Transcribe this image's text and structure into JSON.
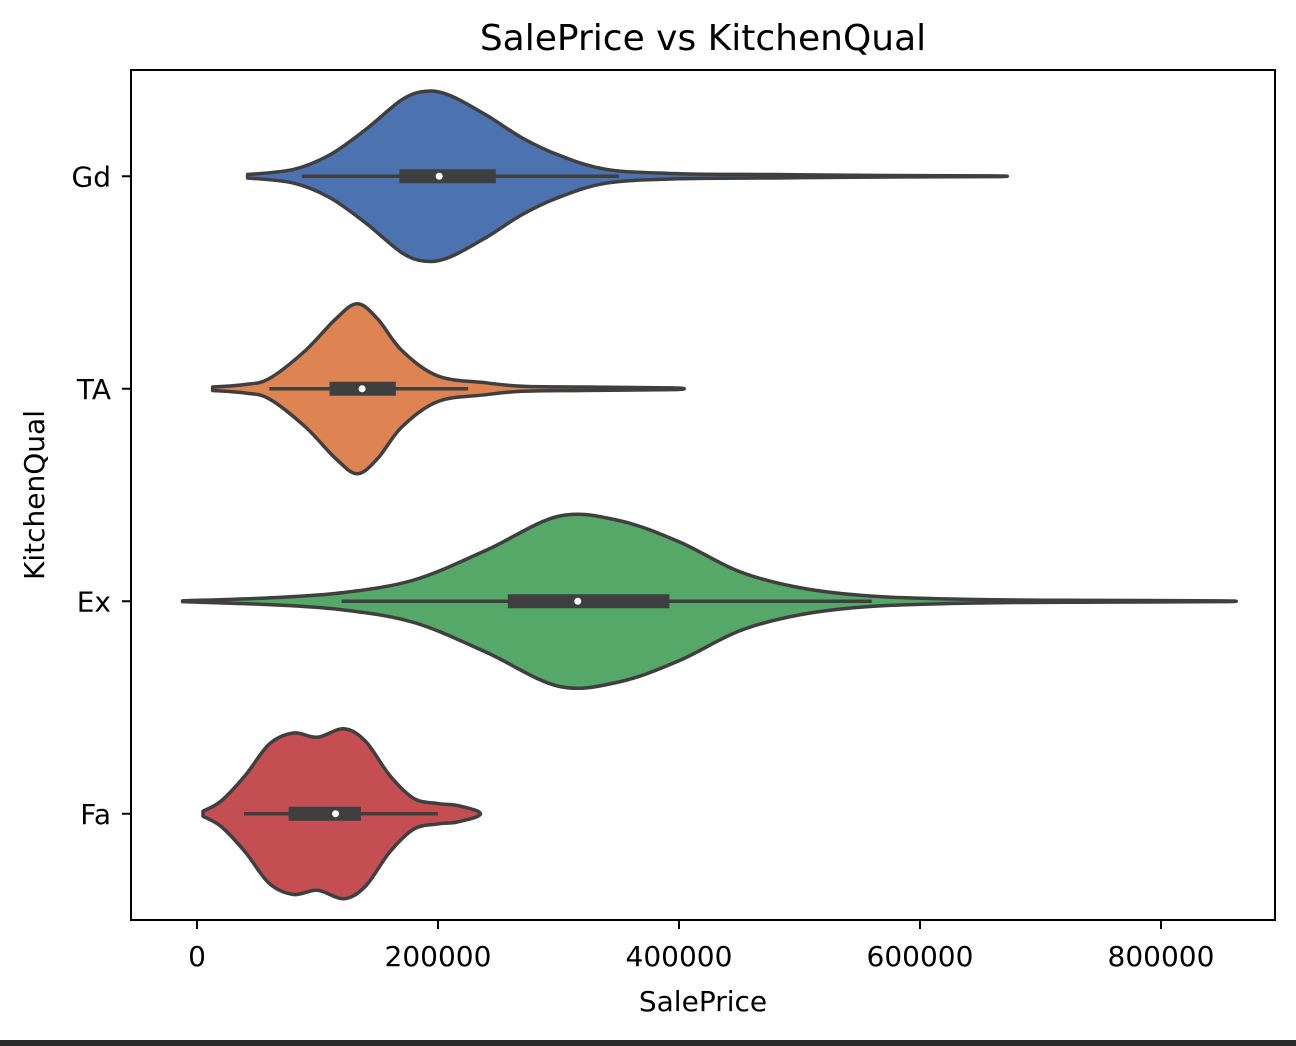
{
  "chart_data": {
    "type": "violin",
    "orientation": "horizontal",
    "title": "SalePrice vs KitchenQual",
    "xlabel": "SalePrice",
    "ylabel": "KitchenQual",
    "xlim": [
      -50000,
      900000
    ],
    "x_ticks": [
      0,
      200000,
      400000,
      600000,
      800000
    ],
    "x_tick_labels": [
      "0",
      "200000",
      "400000",
      "600000",
      "800000"
    ],
    "categories": [
      "Gd",
      "TA",
      "Ex",
      "Fa"
    ],
    "grid": false,
    "series": [
      {
        "category": "Gd",
        "color": "#4c72b0",
        "min": 42000,
        "q1": 168000,
        "median": 201000,
        "q3": 248000,
        "max": 660000,
        "whisker_low": 87000,
        "whisker_high": 350000,
        "density_profile": [
          [
            42000,
            0.02
          ],
          [
            80000,
            0.08
          ],
          [
            110000,
            0.25
          ],
          [
            140000,
            0.55
          ],
          [
            170000,
            0.9
          ],
          [
            190000,
            1.0
          ],
          [
            210000,
            0.95
          ],
          [
            240000,
            0.72
          ],
          [
            270000,
            0.45
          ],
          [
            300000,
            0.25
          ],
          [
            340000,
            0.08
          ],
          [
            400000,
            0.03
          ],
          [
            480000,
            0.02
          ],
          [
            560000,
            0.01
          ],
          [
            660000,
            0.005
          ]
        ]
      },
      {
        "category": "TA",
        "color": "#dd8452",
        "min": 13000,
        "q1": 110000,
        "median": 137000,
        "q3": 165000,
        "max": 395000,
        "whisker_low": 60000,
        "whisker_high": 225000,
        "density_profile": [
          [
            13000,
            0.02
          ],
          [
            40000,
            0.05
          ],
          [
            60000,
            0.12
          ],
          [
            90000,
            0.45
          ],
          [
            115000,
            0.82
          ],
          [
            133000,
            1.0
          ],
          [
            150000,
            0.82
          ],
          [
            170000,
            0.45
          ],
          [
            200000,
            0.15
          ],
          [
            240000,
            0.07
          ],
          [
            270000,
            0.03
          ],
          [
            320000,
            0.02
          ],
          [
            395000,
            0.01
          ]
        ]
      },
      {
        "category": "Ex",
        "color": "#55a868",
        "min": -12000,
        "q1": 258000,
        "median": 316000,
        "q3": 392000,
        "max": 850000,
        "whisker_low": 120000,
        "whisker_high": 560000,
        "density_profile": [
          [
            -12000,
            0.005
          ],
          [
            60000,
            0.04
          ],
          [
            120000,
            0.1
          ],
          [
            180000,
            0.25
          ],
          [
            240000,
            0.6
          ],
          [
            300000,
            1.0
          ],
          [
            350000,
            0.95
          ],
          [
            400000,
            0.7
          ],
          [
            450000,
            0.35
          ],
          [
            500000,
            0.16
          ],
          [
            560000,
            0.06
          ],
          [
            650000,
            0.02
          ],
          [
            750000,
            0.01
          ],
          [
            850000,
            0.005
          ]
        ]
      },
      {
        "category": "Fa",
        "color": "#c44e52",
        "min": 5000,
        "q1": 76000,
        "median": 115000,
        "q3": 136000,
        "max": 233000,
        "whisker_low": 39000,
        "whisker_high": 200000,
        "density_profile": [
          [
            5000,
            0.03
          ],
          [
            20000,
            0.15
          ],
          [
            40000,
            0.45
          ],
          [
            60000,
            0.82
          ],
          [
            80000,
            0.95
          ],
          [
            100000,
            0.9
          ],
          [
            122000,
            1.0
          ],
          [
            140000,
            0.85
          ],
          [
            160000,
            0.45
          ],
          [
            180000,
            0.18
          ],
          [
            200000,
            0.12
          ],
          [
            215000,
            0.1
          ],
          [
            233000,
            0.03
          ]
        ]
      }
    ]
  }
}
